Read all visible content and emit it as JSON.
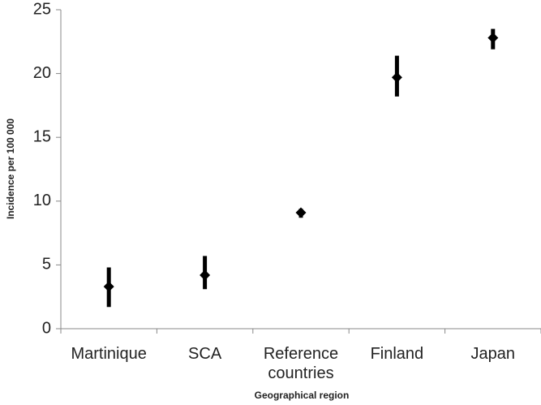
{
  "chart_data": {
    "type": "errorbar",
    "x_label": "Geographical region",
    "y_label": "Incidence per 100 000",
    "categories": [
      "Martinique",
      "SCA",
      "Reference countries",
      "Finland",
      "Japan"
    ],
    "values": [
      3.3,
      4.2,
      9.1,
      19.7,
      22.8
    ],
    "low": [
      1.7,
      3.1,
      8.7,
      18.2,
      21.9
    ],
    "high": [
      4.8,
      5.7,
      9.4,
      21.4,
      23.5
    ],
    "color": "#000000",
    "ylim": [
      0,
      25
    ],
    "yticks": [
      0,
      5,
      10,
      15,
      20,
      25
    ],
    "grid": false
  }
}
